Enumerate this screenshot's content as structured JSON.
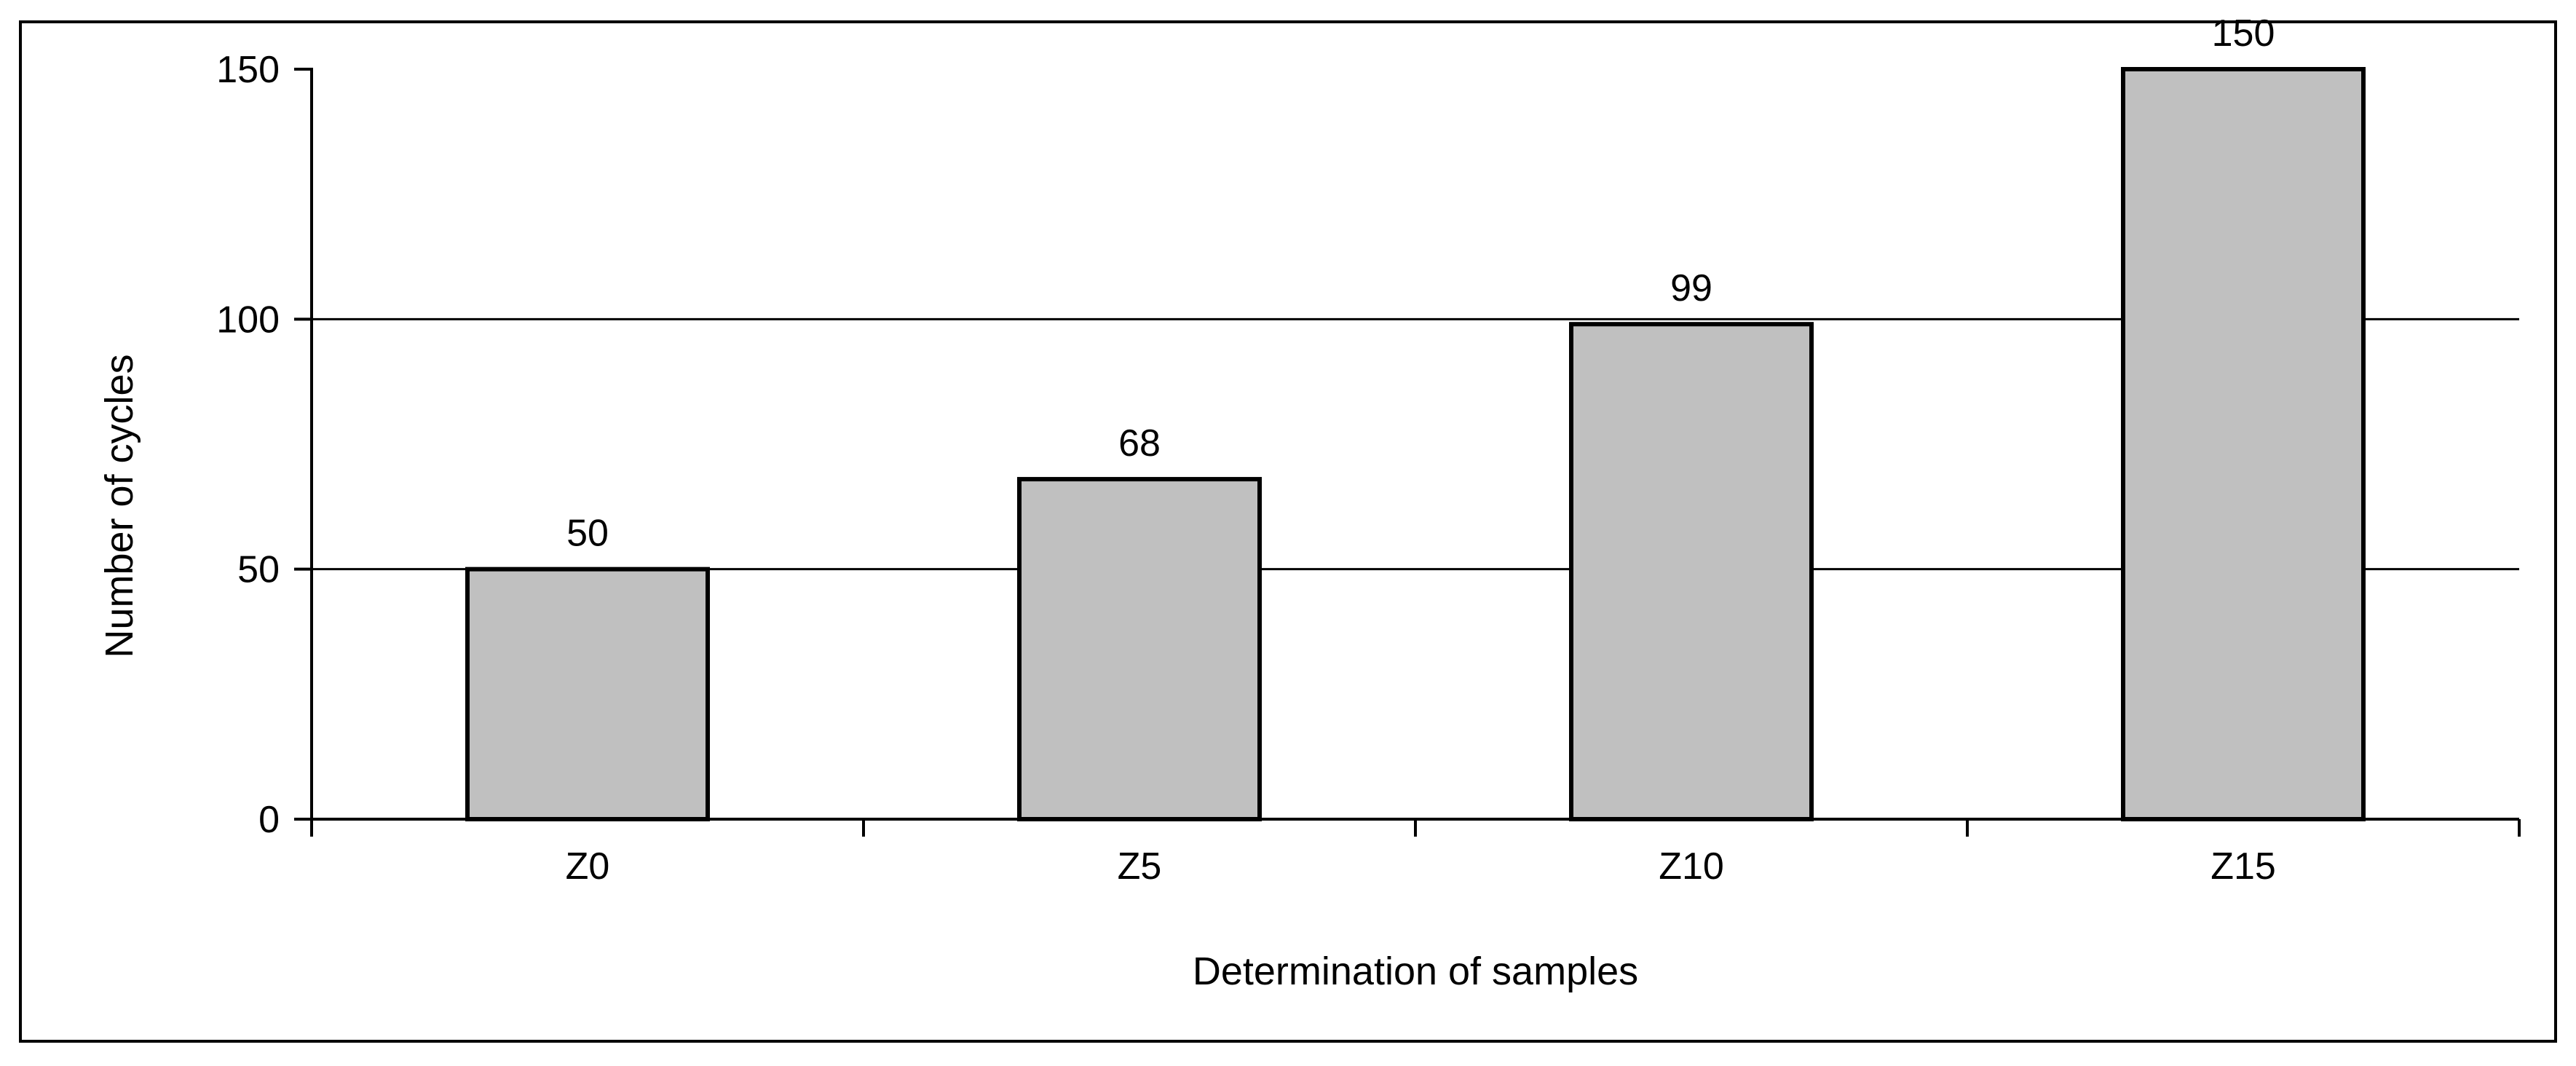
{
  "chart_data": {
    "type": "bar",
    "title": "",
    "categories": [
      "Z0",
      "Z5",
      "Z10",
      "Z15"
    ],
    "values": [
      50,
      68,
      99,
      150
    ],
    "data_labels": [
      "50",
      "68",
      "99",
      "150"
    ],
    "xlabel": "Determination of samples",
    "ylabel": "Number of cycles",
    "ylim": [
      0,
      150
    ],
    "yticks": [
      0,
      50,
      100,
      150
    ],
    "gridline_values": [
      50,
      100
    ],
    "grid": "horizontal",
    "legend": "none",
    "colors": {
      "bar_fill": "#c0c0c0",
      "bar_border": "#000000",
      "axis": "#000000",
      "gridline": "#000000",
      "text": "#000000",
      "frame_border": "#000000",
      "background": "#ffffff"
    }
  }
}
